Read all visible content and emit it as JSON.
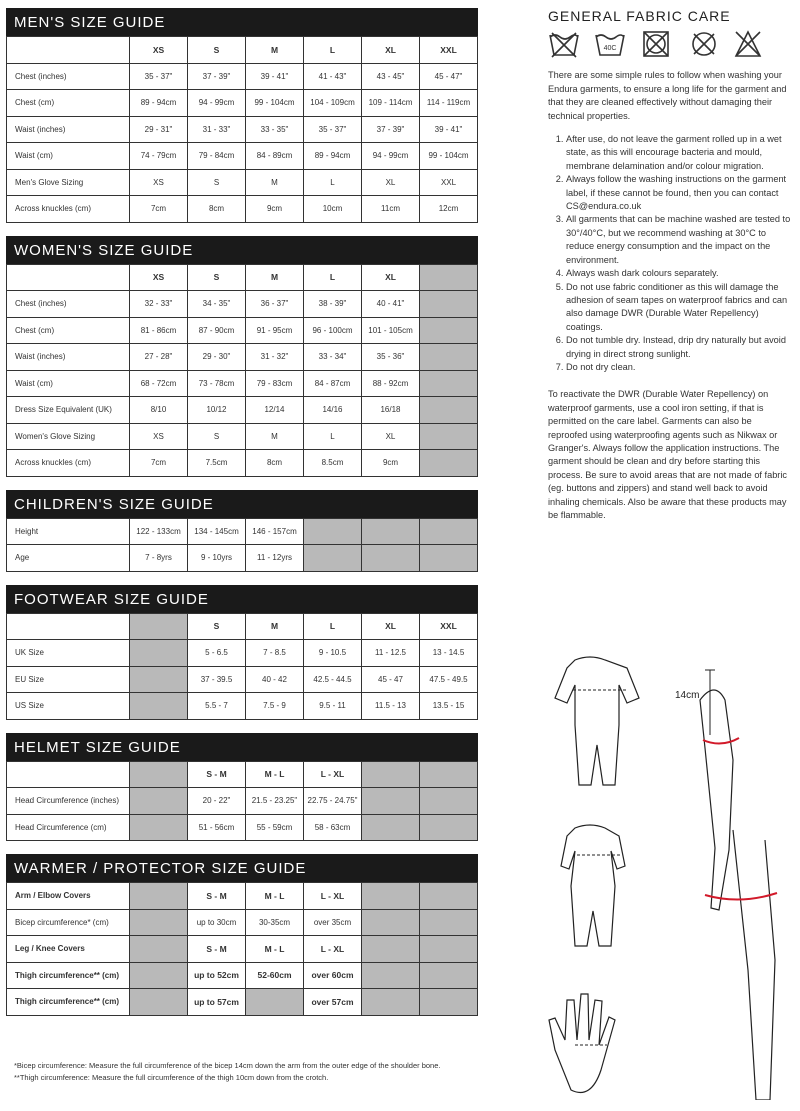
{
  "tables": [
    {
      "title": "MEN'S SIZE GUIDE",
      "header": [
        "XS",
        "S",
        "M",
        "L",
        "XL",
        "XXL"
      ],
      "rows": [
        {
          "label": "Chest (inches)",
          "cells": [
            "35 - 37\"",
            "37 - 39\"",
            "39 - 41\"",
            "41 - 43\"",
            "43 - 45\"",
            "45 - 47\""
          ]
        },
        {
          "label": "Chest (cm)",
          "cells": [
            "89 - 94cm",
            "94 - 99cm",
            "99 - 104cm",
            "104 - 109cm",
            "109 - 114cm",
            "114 - 119cm"
          ]
        },
        {
          "label": "Waist (inches)",
          "cells": [
            "29 - 31\"",
            "31 - 33\"",
            "33 - 35\"",
            "35 - 37\"",
            "37 - 39\"",
            "39 - 41\""
          ]
        },
        {
          "label": "Waist (cm)",
          "cells": [
            "74 - 79cm",
            "79 - 84cm",
            "84 - 89cm",
            "89 - 94cm",
            "94 - 99cm",
            "99 - 104cm"
          ]
        },
        {
          "label": "Men's Glove Sizing",
          "cells": [
            "XS",
            "S",
            "M",
            "L",
            "XL",
            "XXL"
          ]
        },
        {
          "label": "Across knuckles (cm)",
          "cells": [
            "7cm",
            "8cm",
            "9cm",
            "10cm",
            "11cm",
            "12cm"
          ]
        }
      ]
    },
    {
      "title": "WOMEN'S SIZE GUIDE",
      "header": [
        "XS",
        "S",
        "M",
        "L",
        "XL",
        null
      ],
      "rows": [
        {
          "label": "Chest (inches)",
          "cells": [
            "32 - 33\"",
            "34 - 35\"",
            "36 - 37\"",
            "38 - 39\"",
            "40 - 41\"",
            null
          ]
        },
        {
          "label": "Chest (cm)",
          "cells": [
            "81 - 86cm",
            "87 - 90cm",
            "91 - 95cm",
            "96 - 100cm",
            "101 - 105cm",
            null
          ]
        },
        {
          "label": "Waist (inches)",
          "cells": [
            "27 - 28\"",
            "29 - 30\"",
            "31 - 32\"",
            "33 - 34\"",
            "35 - 36\"",
            null
          ]
        },
        {
          "label": "Waist (cm)",
          "cells": [
            "68 - 72cm",
            "73 - 78cm",
            "79 - 83cm",
            "84 - 87cm",
            "88 - 92cm",
            null
          ]
        },
        {
          "label": "Dress Size  Equivalent (UK)",
          "cells": [
            "8/10",
            "10/12",
            "12/14",
            "14/16",
            "16/18",
            null
          ]
        },
        {
          "label": "Women's Glove Sizing",
          "cells": [
            "XS",
            "S",
            "M",
            "L",
            "XL",
            null
          ]
        },
        {
          "label": "Across knuckles (cm)",
          "cells": [
            "7cm",
            "7.5cm",
            "8cm",
            "8.5cm",
            "9cm",
            null
          ]
        }
      ]
    },
    {
      "title": "CHILDREN'S SIZE GUIDE",
      "rows": [
        {
          "label": "Height",
          "cells": [
            "122 - 133cm",
            "134 - 145cm",
            "146 - 157cm",
            null,
            null,
            null
          ]
        },
        {
          "label": "Age",
          "cells": [
            "7 - 8yrs",
            "9 - 10yrs",
            "11 - 12yrs",
            null,
            null,
            null
          ]
        }
      ]
    },
    {
      "title": "FOOTWEAR SIZE GUIDE",
      "header": [
        null,
        "S",
        "M",
        "L",
        "XL",
        "XXL"
      ],
      "rows": [
        {
          "label": "UK Size",
          "cells": [
            null,
            "5 - 6.5",
            "7 - 8.5",
            "9 - 10.5",
            "11 - 12.5",
            "13 - 14.5"
          ]
        },
        {
          "label": "EU Size",
          "cells": [
            null,
            "37 - 39.5",
            "40 - 42",
            "42.5 - 44.5",
            "45 - 47",
            "47.5 - 49.5"
          ]
        },
        {
          "label": "US Size",
          "cells": [
            null,
            "5.5 - 7",
            "7.5 - 9",
            "9.5 - 11",
            "11.5 - 13",
            "13.5 - 15"
          ]
        }
      ]
    },
    {
      "title": "HELMET SIZE GUIDE",
      "header": [
        null,
        "S - M",
        "M - L",
        "L - XL",
        null,
        null
      ],
      "rows": [
        {
          "label": "Head Circumference (inches)",
          "cells": [
            null,
            "20 - 22\"",
            "21.5 - 23.25\"",
            "22.75 - 24.75\"",
            null,
            null
          ]
        },
        {
          "label": "Head Circumference (cm)",
          "cells": [
            null,
            "51 - 56cm",
            "55 - 59cm",
            "58 - 63cm",
            null,
            null
          ]
        }
      ]
    },
    {
      "title": "WARMER / PROTECTOR SIZE GUIDE",
      "rows": [
        {
          "label": "Arm / Elbow Covers",
          "bold": true,
          "cells": [
            null,
            "S - M",
            "M - L",
            "L - XL",
            null,
            null
          ]
        },
        {
          "label": "Bicep circumference* (cm)",
          "cells": [
            null,
            "up to 30cm",
            "30-35cm",
            "over 35cm",
            null,
            null
          ]
        },
        {
          "label": "Leg / Knee Covers",
          "bold": true,
          "cells": [
            null,
            "S - M",
            "M - L",
            "L - XL",
            null,
            null
          ]
        },
        {
          "label": "Thigh circumference** (cm)",
          "bold": true,
          "cells": [
            null,
            "up to 52cm",
            "52-60cm",
            "over 60cm",
            null,
            null
          ]
        },
        {
          "label": "Thigh circumference** (cm)",
          "bold": true,
          "cells": [
            null,
            "up to 57cm",
            null,
            "over 57cm",
            null,
            null
          ]
        }
      ]
    }
  ],
  "care": {
    "title": "GENERAL FABRIC CARE",
    "wash_temp": "40C",
    "intro": "There are some simple rules to follow when washing your Endura garments, to ensure a long life for the garment and that they are cleaned effectively without damaging their technical properties.",
    "items": [
      "After use, do not leave the garment rolled up in a wet state, as this will encourage bacteria and mould, membrane delamination and/or colour migration.",
      "Always follow the washing instructions on the garment label, if these cannot be found, then you can contact CS@endura.co.uk",
      "All garments that can be machine washed are tested to 30°/40°C, but we recommend washing at 30°C to reduce energy consumption and the impact on the environment.",
      "Always wash dark colours separately.",
      "Do not use fabric conditioner as this will damage the adhesion of seam tapes on waterproof fabrics and can also damage DWR (Durable Water Repellency) coatings.",
      "Do not tumble dry. Instead, drip dry naturally but avoid drying in direct strong sunlight.",
      "Do not dry clean."
    ],
    "outro": "To reactivate the DWR (Durable Water Repellency) on waterproof garments, use a cool iron setting, if that is permitted on the care label.  Garments can also be reproofed using waterproofing agents such as Nikwax or Granger's. Always follow the application instructions. The garment should be clean and dry before starting this process.  Be sure to avoid areas that are not made of fabric (eg. buttons and zippers) and stand well back to avoid inhaling chemicals.  Also be aware that these products may be flammable."
  },
  "diagram": {
    "measure": "14cm"
  },
  "footnotes": [
    "*Bicep circumference: Measure the full circumference of the bicep 14cm down the arm from the outer edge of the shoulder bone.",
    "**Thigh circumference: Measure the full circumference of the thigh 10cm down from the crotch."
  ]
}
